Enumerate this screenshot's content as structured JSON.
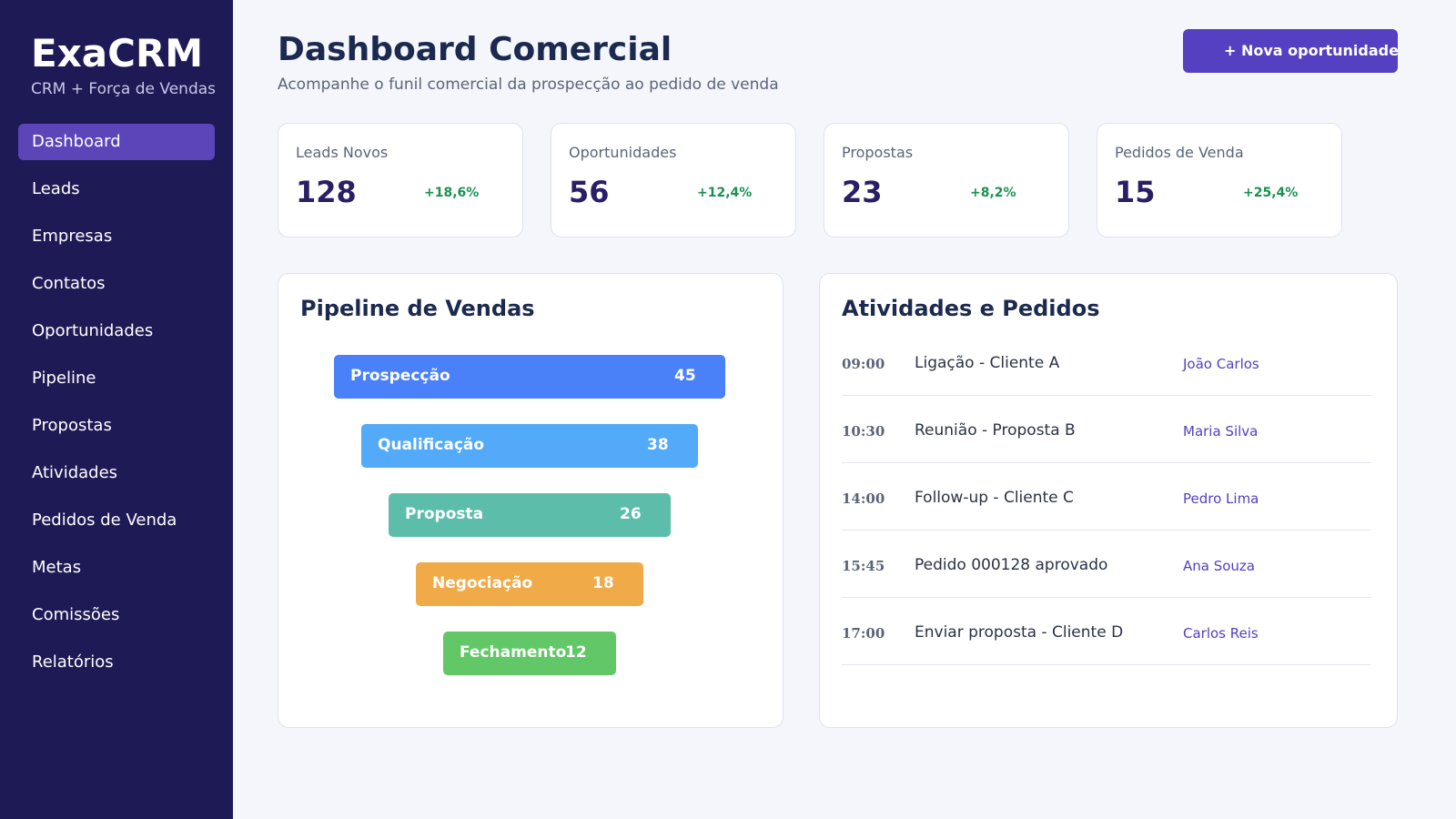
{
  "sidebar": {
    "brand": "ExaCRM",
    "tagline": "CRM + Força de Vendas",
    "nav": [
      "Dashboard",
      "Leads",
      "Empresas",
      "Contatos",
      "Oportunidades",
      "Pipeline",
      "Propostas",
      "Atividades",
      "Pedidos de Venda",
      "Metas",
      "Comissões",
      "Relatórios"
    ]
  },
  "header": {
    "title": "Dashboard Comercial",
    "subtitle": "Acompanhe o funil comercial da prospecção ao pedido de venda",
    "button": "+ Nova oportunidade"
  },
  "kpis": [
    {
      "label": "Leads Novos",
      "value": "128",
      "change": "+18,6%"
    },
    {
      "label": "Oportunidades",
      "value": "56",
      "change": "+12,4%"
    },
    {
      "label": "Propostas",
      "value": "23",
      "change": "+8,2%"
    },
    {
      "label": "Pedidos de Venda",
      "value": "15",
      "change": "+25,4%"
    }
  ],
  "pipeline": {
    "title": "Pipeline de Vendas",
    "stages": [
      {
        "name": "Prospecção",
        "count": "45"
      },
      {
        "name": "Qualificação",
        "count": "38"
      },
      {
        "name": "Proposta",
        "count": "26"
      },
      {
        "name": "Negociação",
        "count": "18"
      },
      {
        "name": "Fechamento",
        "count": "12"
      }
    ]
  },
  "activities": {
    "title": "Atividades e Pedidos",
    "rows": [
      {
        "time": "09:00",
        "title": "Ligação - Cliente A",
        "owner": "João Carlos"
      },
      {
        "time": "10:30",
        "title": "Reunião - Proposta B",
        "owner": "Maria Silva"
      },
      {
        "time": "14:00",
        "title": "Follow-up - Cliente C",
        "owner": "Pedro Lima"
      },
      {
        "time": "15:45",
        "title": "Pedido 000128 aprovado",
        "owner": "Ana Souza"
      },
      {
        "time": "17:00",
        "title": "Enviar proposta - Cliente D",
        "owner": "Carlos Reis"
      }
    ]
  }
}
